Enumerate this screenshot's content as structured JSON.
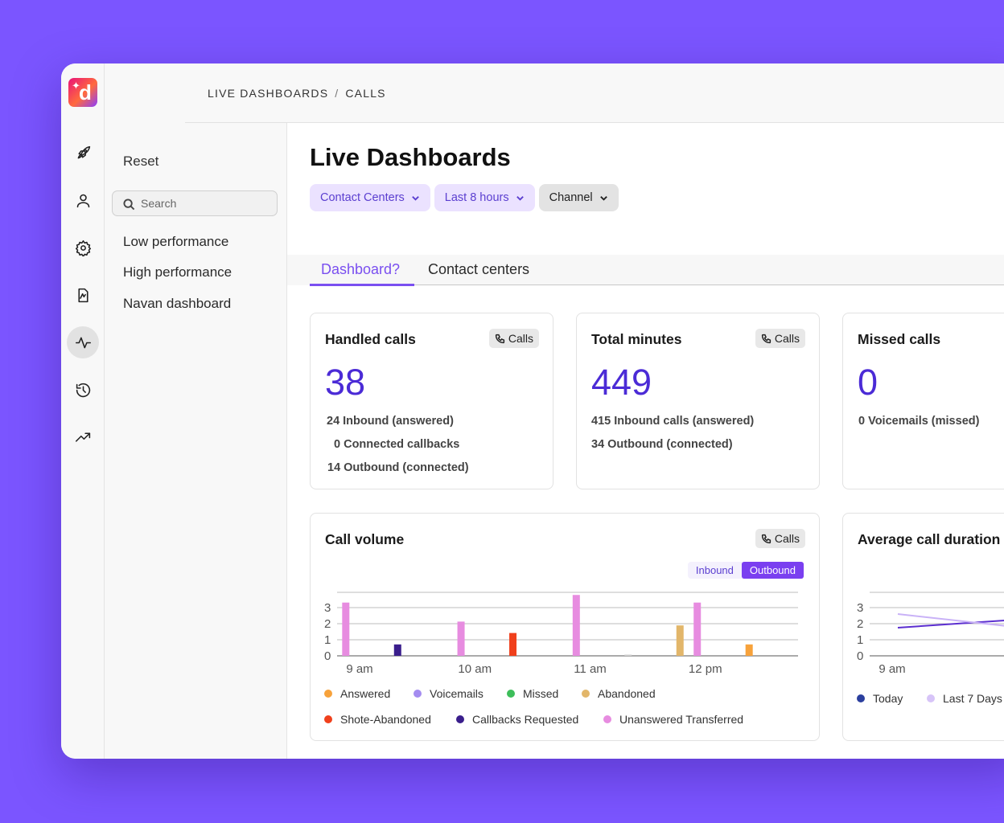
{
  "breadcrumb": {
    "root": "LIVE DASHBOARDS",
    "separator": "/",
    "current": "CALLS"
  },
  "logo": {
    "letter": "d"
  },
  "rail": {
    "icons": [
      "rocket-icon",
      "user-icon",
      "gear-icon",
      "reports-icon",
      "activity-icon",
      "history-icon",
      "trending-icon"
    ],
    "active": "activity-icon"
  },
  "sidebar": {
    "reset_label": "Reset",
    "search_placeholder": "Search",
    "links": [
      "Low performance",
      "High performance",
      "Navan dashboard"
    ]
  },
  "page": {
    "title": "Live Dashboards"
  },
  "filters": [
    {
      "label": "Contact Centers"
    },
    {
      "label": "Last 8 hours"
    },
    {
      "label": "Channel"
    }
  ],
  "tabs": [
    {
      "label": "Dashboard?",
      "active": true
    },
    {
      "label": "Contact centers",
      "active": false
    }
  ],
  "cards": {
    "handled": {
      "title": "Handled calls",
      "chip": "Calls",
      "value": "38",
      "lines": [
        "24 Inbound (answered)",
        "0 Connected callbacks",
        "14 Outbound (connected)"
      ]
    },
    "minutes": {
      "title": "Total minutes",
      "chip": "Calls",
      "value": "449",
      "lines": [
        "415 Inbound calls (answered)",
        "34 Outbound (connected)"
      ]
    },
    "missed": {
      "title": "Missed calls",
      "value": "0",
      "lines": [
        "0 Voicemails (missed)"
      ]
    }
  },
  "call_volume": {
    "title": "Call volume",
    "chip": "Calls",
    "toggle": {
      "off": "Inbound",
      "on": "Outbound"
    },
    "legend": [
      {
        "label": "Answered",
        "color": "#F7A23B"
      },
      {
        "label": "Voicemails",
        "color": "#A48CF0"
      },
      {
        "label": "Missed",
        "color": "#3DBE5A"
      },
      {
        "label": "Abandoned",
        "color": "#E2B66A"
      },
      {
        "label": "Shote-Abandoned",
        "color": "#F0401C"
      },
      {
        "label": "Callbacks Requested",
        "color": "#3A1E8C"
      },
      {
        "label": "Unanswered Transferred",
        "color": "#E78CE0"
      }
    ]
  },
  "avg_duration": {
    "title": "Average call duration",
    "legend": [
      {
        "label": "Today",
        "color": "#2B3F9E"
      },
      {
        "label": "Last 7 Days",
        "color": "#D7C4F8"
      }
    ]
  },
  "chart_data": [
    {
      "type": "bar",
      "title": "Call volume",
      "x_ticks": [
        "9 am",
        "10 am",
        "11 am",
        "12 pm"
      ],
      "ylim": [
        0,
        3
      ],
      "y_ticks": [
        "0",
        "1",
        "2",
        "3"
      ],
      "grid": true,
      "legend_position": "bottom",
      "bars": [
        {
          "series": "Unanswered Transferred",
          "slot": 0.25,
          "value": 2.8,
          "color": "#E78CE0"
        },
        {
          "series": "Callbacks Requested",
          "slot": 0.7,
          "value": 0.6,
          "color": "#3A1E8C"
        },
        {
          "series": "Unanswered Transferred",
          "slot": 1.25,
          "value": 1.8,
          "color": "#E78CE0"
        },
        {
          "series": "Shote-Abandoned",
          "slot": 1.7,
          "value": 1.2,
          "color": "#F0401C"
        },
        {
          "series": "Unanswered Transferred",
          "slot": 2.25,
          "value": 3.2,
          "color": "#E78CE0"
        },
        {
          "series": "Missed",
          "slot": 2.7,
          "value": 0.05,
          "color": "#cfcfcf"
        },
        {
          "series": "Abandoned",
          "slot": 3.15,
          "value": 1.6,
          "color": "#E2B66A"
        },
        {
          "series": "Unanswered Transferred",
          "slot": 3.3,
          "value": 2.8,
          "color": "#E78CE0"
        },
        {
          "series": "Answered",
          "slot": 3.75,
          "value": 0.6,
          "color": "#F7A23B"
        }
      ]
    },
    {
      "type": "line",
      "title": "Average call duration",
      "x_ticks": [
        "9 am"
      ],
      "ylim": [
        0,
        3
      ],
      "y_ticks": [
        "0",
        "1",
        "2",
        "3"
      ],
      "grid": true,
      "legend_position": "bottom",
      "series": [
        {
          "name": "Today",
          "color": "#5B2ED0",
          "x": [
            0,
            1
          ],
          "y": [
            1.75,
            2.55
          ]
        },
        {
          "name": "Last 7 Days",
          "color": "#C9B2F7",
          "x": [
            0,
            1
          ],
          "y": [
            2.6,
            1.3
          ]
        }
      ]
    }
  ]
}
